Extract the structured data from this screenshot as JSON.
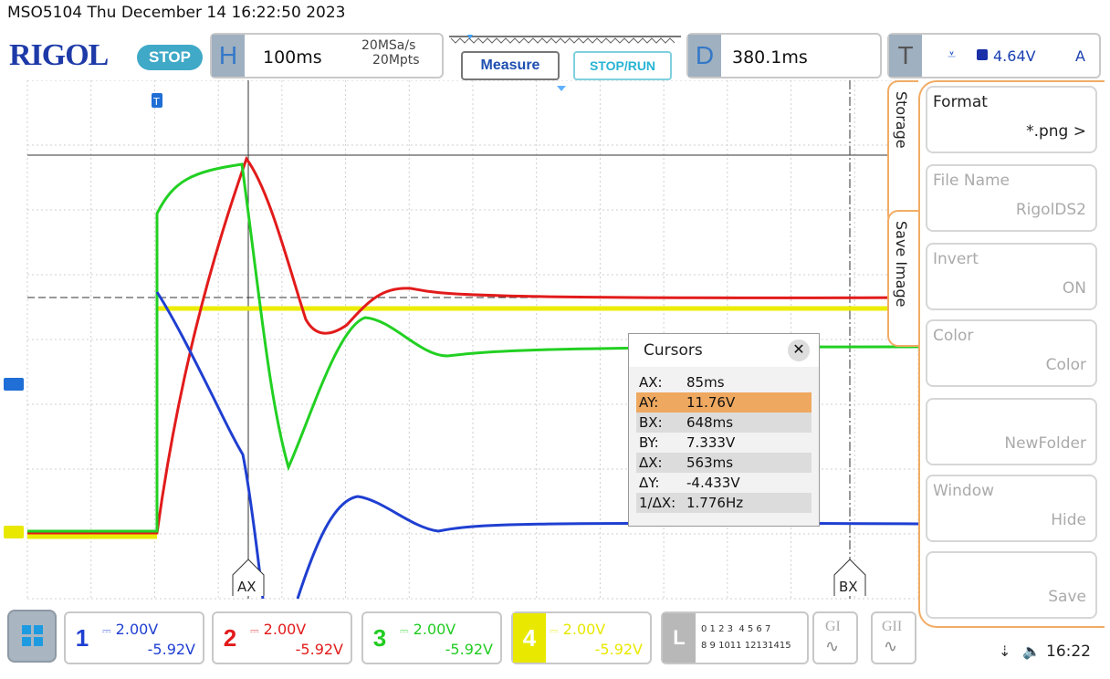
{
  "titlebar": "MSO5104  Thu December 14 16:22:50 2023",
  "logo": "RIGOL",
  "run_state": "STOP",
  "horizontal": {
    "letter": "H",
    "timebase": "100ms",
    "rate": "20MSa/s",
    "depth": "20Mpts"
  },
  "measure_label": "Measure",
  "stoprun_label": "STOP/RUN",
  "delay": {
    "letter": "D",
    "value": "380.1ms"
  },
  "trigger": {
    "letter": "T",
    "level": "4.64V",
    "mode": "A"
  },
  "menu": {
    "tab_storage": "Storage",
    "tab_save_image": "Save Image",
    "items": [
      {
        "label": "Format",
        "value": "*.png"
      },
      {
        "label": "File Name",
        "value": "RigolDS2"
      },
      {
        "label": "Invert",
        "value": "ON"
      },
      {
        "label": "Color",
        "value": "Color"
      },
      {
        "label": "",
        "value": "NewFolder"
      },
      {
        "label": "Window",
        "value": "Hide"
      },
      {
        "label": "",
        "value": "Save"
      }
    ]
  },
  "cursors": {
    "title": "Cursors",
    "rows": [
      {
        "k": "AX:",
        "v": "85ms"
      },
      {
        "k": "AY:",
        "v": "11.76V"
      },
      {
        "k": "BX:",
        "v": "648ms"
      },
      {
        "k": "BY:",
        "v": "7.333V"
      },
      {
        "k": "ΔX:",
        "v": "563ms"
      },
      {
        "k": "ΔY:",
        "v": "-4.433V"
      },
      {
        "k": "1/ΔX:",
        "v": "1.776Hz"
      }
    ]
  },
  "marker_ax": "AX",
  "marker_bx": "BX",
  "channels": [
    {
      "num": "1",
      "scale": "2.00V",
      "offset": "-5.92V",
      "color": "#1f3fd1"
    },
    {
      "num": "2",
      "scale": "2.00V",
      "offset": "-5.92V",
      "color": "#e21b1b"
    },
    {
      "num": "3",
      "scale": "2.00V",
      "offset": "-5.92V",
      "color": "#22cc22"
    },
    {
      "num": "4",
      "scale": "2.00V",
      "offset": "-5.92V",
      "color": "#e8e800"
    }
  ],
  "logic": {
    "letter": "L",
    "row1": "0 1 2 3  4 5 6 7",
    "row2": "8 9 1011 12131415"
  },
  "gi": "GI",
  "gii": "GII",
  "clock": "16:22"
}
